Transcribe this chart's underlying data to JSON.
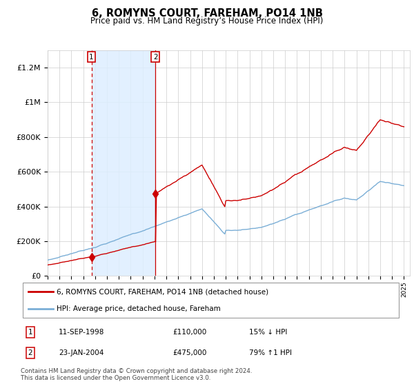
{
  "title": "6, ROMYNS COURT, FAREHAM, PO14 1NB",
  "subtitle": "Price paid vs. HM Land Registry’s House Price Index (HPI)",
  "ylabel_ticks": [
    "£0",
    "£200K",
    "£400K",
    "£600K",
    "£800K",
    "£1M",
    "£1.2M"
  ],
  "ytick_vals": [
    0,
    200000,
    400000,
    600000,
    800000,
    1000000,
    1200000
  ],
  "ylim": [
    0,
    1300000
  ],
  "xlim_start": 1995.0,
  "xlim_end": 2025.5,
  "transaction1": {
    "date_num": 1998.69,
    "price": 110000,
    "label": "1",
    "date_str": "11-SEP-1998",
    "price_str": "£110,000",
    "hpi_str": "15% ↓ HPI"
  },
  "transaction2": {
    "date_num": 2004.07,
    "price": 475000,
    "label": "2",
    "date_str": "23-JAN-2004",
    "price_str": "£475,000",
    "hpi_str": "79% ↑1 HPI"
  },
  "legend_line1": "6, ROMYNS COURT, FAREHAM, PO14 1NB (detached house)",
  "legend_line2": "HPI: Average price, detached house, Fareham",
  "footer": "Contains HM Land Registry data © Crown copyright and database right 2024.\nThis data is licensed under the Open Government Licence v3.0.",
  "line_color_red": "#cc0000",
  "line_color_blue": "#7aaed6",
  "shade_color": "#ddeeff",
  "grid_color": "#cccccc"
}
